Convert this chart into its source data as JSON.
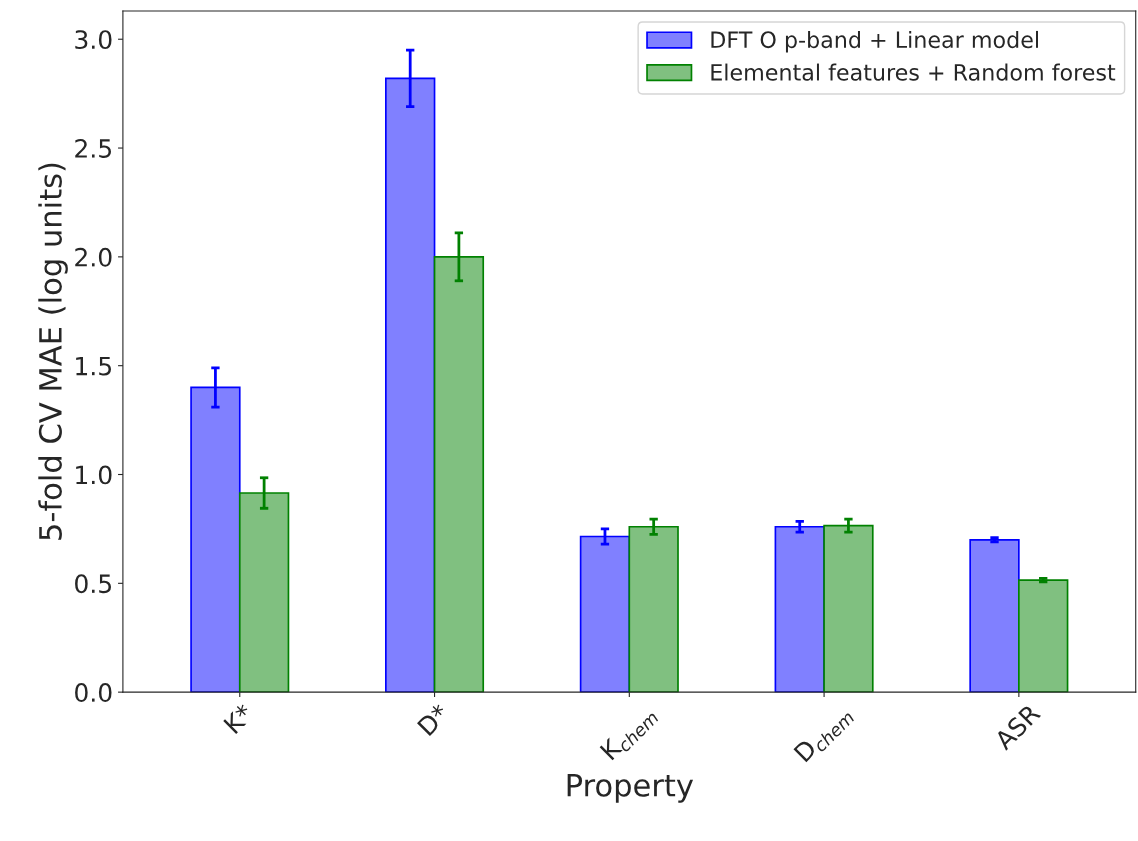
{
  "chart_data": {
    "type": "bar",
    "xlabel": "Property",
    "ylabel": "5-fold CV MAE (log units)",
    "categories": [
      "K*",
      "D*",
      "K$_{chem}$",
      "D$_{chem}$",
      "ASR"
    ],
    "series": [
      {
        "name": "DFT O p-band + Linear model",
        "color": "#8080ff",
        "values": [
          1.4,
          2.82,
          0.715,
          0.76,
          0.7
        ],
        "errors": [
          0.09,
          0.13,
          0.035,
          0.025,
          0.01
        ]
      },
      {
        "name": "Elemental features + Random forest",
        "color": "#80c080",
        "values": [
          0.915,
          2.0,
          0.76,
          0.765,
          0.515
        ],
        "errors": [
          0.07,
          0.11,
          0.035,
          0.03,
          0.008
        ]
      }
    ],
    "ylim": [
      0,
      3.13
    ],
    "yticks": [
      {
        "value": 0,
        "label": "0.0"
      },
      {
        "value": 0.5,
        "label": "0.5"
      },
      {
        "value": 1,
        "label": "1.0"
      },
      {
        "value": 1.5,
        "label": "1.5"
      },
      {
        "value": 2,
        "label": "2.0"
      },
      {
        "value": 2.5,
        "label": "2.5"
      },
      {
        "value": 3,
        "label": "3.0"
      }
    ],
    "legend": "top right",
    "grid": false
  }
}
